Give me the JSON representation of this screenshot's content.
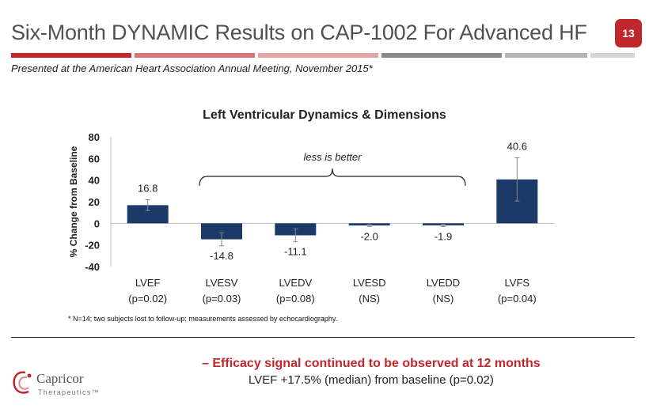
{
  "header": {
    "title": "Six-Month DYNAMIC Results on CAP-1002 For Advanced HF",
    "page_number": "13",
    "subtitle": "Presented at the American Heart Association Annual Meeting, November 2015*",
    "rule_colors": [
      "#c0272d",
      "#d9737a",
      "#e8a3a6",
      "#8a8a8a",
      "#b5b5b5",
      "#d5d5d5"
    ]
  },
  "chart_data": {
    "type": "bar",
    "title": "Left Ventricular Dynamics & Dimensions",
    "ylabel": "% Change from Baseline",
    "ylim": [
      -40,
      80
    ],
    "yticks": [
      "80",
      "60",
      "40",
      "20",
      "0",
      "-20",
      "-40"
    ],
    "categories": [
      {
        "name": "LVEF",
        "p": "(p=0.02)"
      },
      {
        "name": "LVESV",
        "p": "(p=0.03)"
      },
      {
        "name": "LVEDV",
        "p": "(p=0.08)"
      },
      {
        "name": "LVESD",
        "p": "(NS)"
      },
      {
        "name": "LVEDD",
        "p": "(NS)"
      },
      {
        "name": "LVFS",
        "p": "(p=0.04)"
      }
    ],
    "values": [
      16.8,
      -14.8,
      -11.1,
      -2.0,
      -1.9,
      40.6
    ],
    "value_labels": [
      "16.8",
      "-14.8",
      "-11.1",
      "-2.0",
      "-1.9",
      "40.6"
    ],
    "error": [
      5,
      6,
      6,
      1,
      1,
      20
    ],
    "bar_color": "#1b3a68",
    "annotation": "less is better",
    "grid": false
  },
  "footnote": "* N=14; two subjects lost to follow-up; measurements assessed  by echocardiography.",
  "bullet": {
    "marker": "–",
    "headline": "Efficacy signal continued to be observed at 12 months",
    "detail": "LVEF +17.5% (median) from baseline (p=0.02)"
  },
  "logo": {
    "name": "Capricor",
    "sub": "Therapeutics",
    "trademark": "™",
    "color": "#c0272d"
  }
}
